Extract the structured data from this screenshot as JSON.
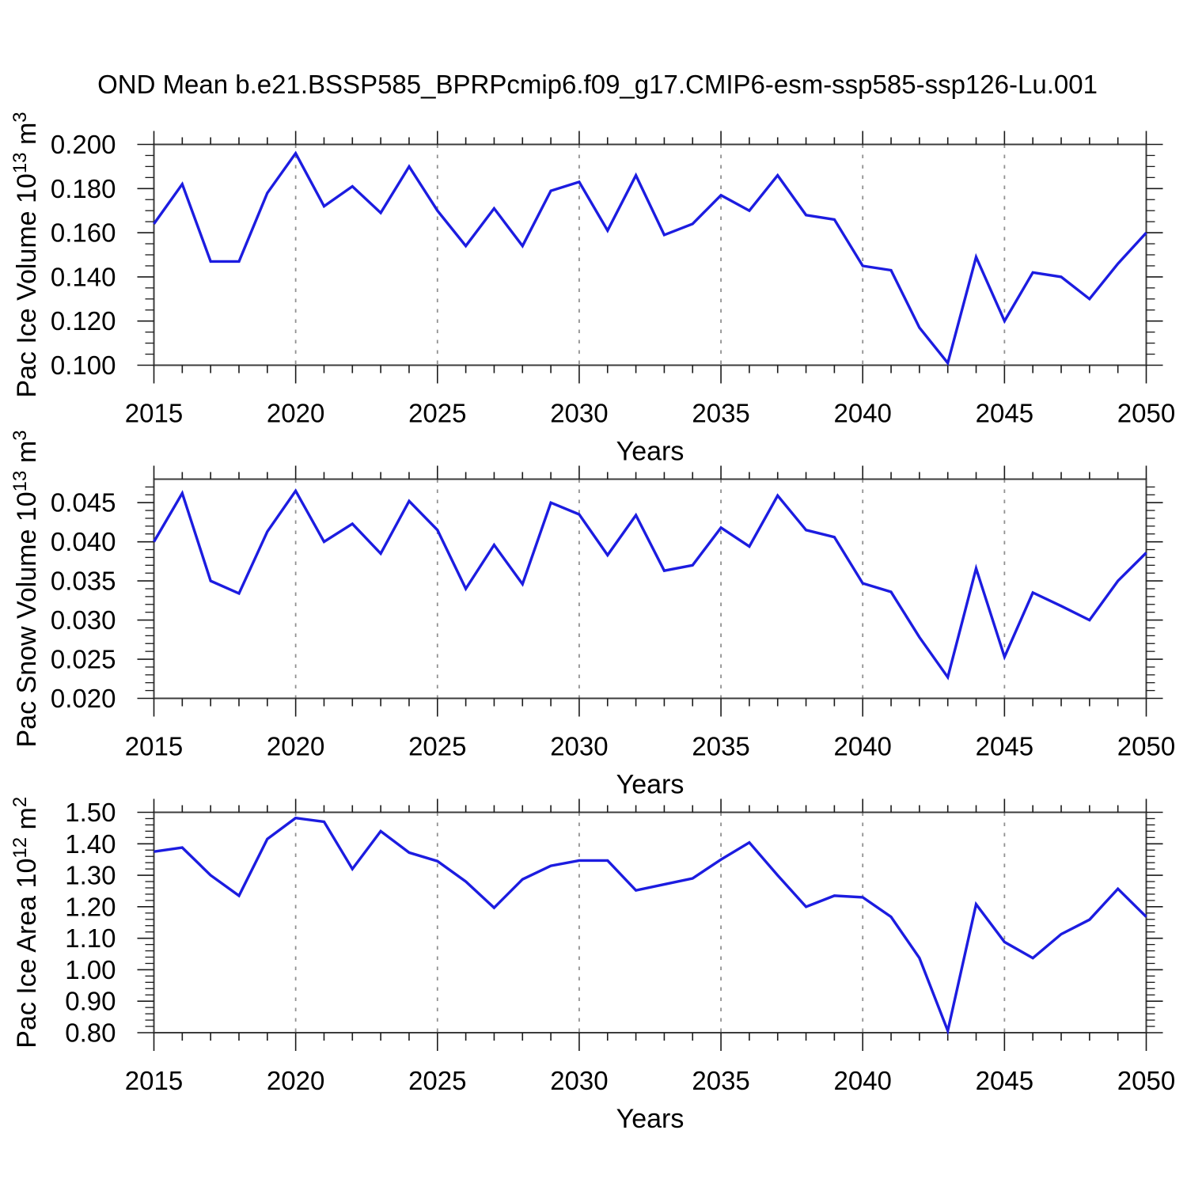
{
  "title": "OND Mean b.e21.BSSP585_BPRPcmip6.f09_g17.CMIP6-esm-ssp585-ssp126-Lu.001",
  "colors": {
    "background": "#ffffff",
    "line": "#1c1ce0",
    "grid": "#919191",
    "frame": "#3c3c3c",
    "tick": "#1a1a1a",
    "text": "#000000"
  },
  "chart_data": [
    {
      "type": "line",
      "title": "OND Mean b.e21.BSSP585_BPRPcmip6.f09_g17.CMIP6-esm-ssp585-ssp126-Lu.001",
      "xlabel": "Years",
      "ylabel": "Pac Ice Volume 10^13 m^3",
      "ylabel_segments": [
        [
          "Pac Ice Volume 10",
          false
        ],
        [
          "13",
          true
        ],
        [
          " m",
          false
        ],
        [
          "3",
          true
        ]
      ],
      "legend": "none",
      "grid": "vertical-dashed",
      "x": [
        2015,
        2016,
        2017,
        2018,
        2019,
        2020,
        2021,
        2022,
        2023,
        2024,
        2025,
        2026,
        2027,
        2028,
        2029,
        2030,
        2031,
        2032,
        2033,
        2034,
        2035,
        2036,
        2037,
        2038,
        2039,
        2040,
        2041,
        2042,
        2043,
        2044,
        2045,
        2046,
        2047,
        2048,
        2049,
        2050
      ],
      "y": [
        0.164,
        0.182,
        0.147,
        0.147,
        0.178,
        0.196,
        0.172,
        0.181,
        0.169,
        0.19,
        0.17,
        0.154,
        0.171,
        0.154,
        0.179,
        0.183,
        0.161,
        0.186,
        0.159,
        0.164,
        0.177,
        0.17,
        0.186,
        0.168,
        0.166,
        0.145,
        0.143,
        0.117,
        0.101,
        0.149,
        0.12,
        0.142,
        0.14,
        0.13,
        0.146,
        0.16
      ],
      "xlim": [
        2015,
        2050
      ],
      "ylim": [
        0.1,
        0.2
      ],
      "yticks": [
        {
          "value": 0.1,
          "label": "0.100"
        },
        {
          "value": 0.12,
          "label": "0.120"
        },
        {
          "value": 0.14,
          "label": "0.140"
        },
        {
          "value": 0.16,
          "label": "0.160"
        },
        {
          "value": 0.18,
          "label": "0.180"
        },
        {
          "value": 0.2,
          "label": "0.200"
        }
      ],
      "y_minor_step": 0.005,
      "xticks": [
        {
          "value": 2015,
          "label": "2015"
        },
        {
          "value": 2020,
          "label": "2020"
        },
        {
          "value": 2025,
          "label": "2025"
        },
        {
          "value": 2030,
          "label": "2030"
        },
        {
          "value": 2035,
          "label": "2035"
        },
        {
          "value": 2040,
          "label": "2040"
        },
        {
          "value": 2045,
          "label": "2045"
        },
        {
          "value": 2050,
          "label": "2050"
        }
      ],
      "x_minor_step": 1,
      "grid_x": [
        2020,
        2025,
        2030,
        2035,
        2040,
        2045
      ]
    },
    {
      "type": "line",
      "title": "",
      "xlabel": "Years",
      "ylabel": "Pac Snow Volume 10^13 m^3",
      "ylabel_segments": [
        [
          "Pac Snow Volume 10",
          false
        ],
        [
          "13",
          true
        ],
        [
          " m",
          false
        ],
        [
          "3",
          true
        ]
      ],
      "legend": "none",
      "grid": "vertical-dashed",
      "x": [
        2015,
        2016,
        2017,
        2018,
        2019,
        2020,
        2021,
        2022,
        2023,
        2024,
        2025,
        2026,
        2027,
        2028,
        2029,
        2030,
        2031,
        2032,
        2033,
        2034,
        2035,
        2036,
        2037,
        2038,
        2039,
        2040,
        2041,
        2042,
        2043,
        2044,
        2045,
        2046,
        2047,
        2048,
        2049,
        2050
      ],
      "y": [
        0.04,
        0.0462,
        0.035,
        0.0334,
        0.0413,
        0.0465,
        0.04,
        0.0423,
        0.0385,
        0.0452,
        0.0415,
        0.034,
        0.0396,
        0.0346,
        0.045,
        0.0435,
        0.0383,
        0.0434,
        0.0363,
        0.037,
        0.0418,
        0.0394,
        0.0459,
        0.0415,
        0.0406,
        0.0347,
        0.0336,
        0.0278,
        0.0227,
        0.0366,
        0.0253,
        0.0335,
        0.0318,
        0.03,
        0.035,
        0.0386
      ],
      "xlim": [
        2015,
        2050
      ],
      "ylim": [
        0.02,
        0.048
      ],
      "yticks": [
        {
          "value": 0.02,
          "label": "0.020"
        },
        {
          "value": 0.025,
          "label": "0.025"
        },
        {
          "value": 0.03,
          "label": "0.030"
        },
        {
          "value": 0.035,
          "label": "0.035"
        },
        {
          "value": 0.04,
          "label": "0.040"
        },
        {
          "value": 0.045,
          "label": "0.045"
        }
      ],
      "y_minor_step": 0.001,
      "xticks": [
        {
          "value": 2015,
          "label": "2015"
        },
        {
          "value": 2020,
          "label": "2020"
        },
        {
          "value": 2025,
          "label": "2025"
        },
        {
          "value": 2030,
          "label": "2030"
        },
        {
          "value": 2035,
          "label": "2035"
        },
        {
          "value": 2040,
          "label": "2040"
        },
        {
          "value": 2045,
          "label": "2045"
        },
        {
          "value": 2050,
          "label": "2050"
        }
      ],
      "x_minor_step": 1,
      "grid_x": [
        2020,
        2025,
        2030,
        2035,
        2040,
        2045
      ]
    },
    {
      "type": "line",
      "title": "",
      "xlabel": "Years",
      "ylabel": "Pac Ice Area 10^12 m^2",
      "ylabel_segments": [
        [
          "Pac Ice Area 10",
          false
        ],
        [
          "12",
          true
        ],
        [
          " m",
          false
        ],
        [
          "2",
          true
        ]
      ],
      "legend": "none",
      "grid": "vertical-dashed",
      "x": [
        2015,
        2016,
        2017,
        2018,
        2019,
        2020,
        2021,
        2022,
        2023,
        2024,
        2025,
        2026,
        2027,
        2028,
        2029,
        2030,
        2031,
        2032,
        2033,
        2034,
        2035,
        2036,
        2037,
        2038,
        2039,
        2040,
        2041,
        2042,
        2043,
        2044,
        2045,
        2046,
        2047,
        2048,
        2049,
        2050
      ],
      "y": [
        1.375,
        1.388,
        1.3,
        1.235,
        1.415,
        1.482,
        1.47,
        1.32,
        1.44,
        1.372,
        1.345,
        1.28,
        1.197,
        1.287,
        1.33,
        1.347,
        1.347,
        1.252,
        1.271,
        1.29,
        1.35,
        1.404,
        1.3,
        1.2,
        1.235,
        1.23,
        1.168,
        1.037,
        0.806,
        1.208,
        1.088,
        1.037,
        1.113,
        1.159,
        1.257,
        1.168
      ],
      "xlim": [
        2015,
        2050
      ],
      "ylim": [
        0.8,
        1.5
      ],
      "yticks": [
        {
          "value": 0.8,
          "label": "0.80"
        },
        {
          "value": 0.9,
          "label": "0.90"
        },
        {
          "value": 1.0,
          "label": "1.00"
        },
        {
          "value": 1.1,
          "label": "1.10"
        },
        {
          "value": 1.2,
          "label": "1.20"
        },
        {
          "value": 1.3,
          "label": "1.30"
        },
        {
          "value": 1.4,
          "label": "1.40"
        },
        {
          "value": 1.5,
          "label": "1.50"
        }
      ],
      "y_minor_step": 0.02,
      "xticks": [
        {
          "value": 2015,
          "label": "2015"
        },
        {
          "value": 2020,
          "label": "2020"
        },
        {
          "value": 2025,
          "label": "2025"
        },
        {
          "value": 2030,
          "label": "2030"
        },
        {
          "value": 2035,
          "label": "2035"
        },
        {
          "value": 2040,
          "label": "2040"
        },
        {
          "value": 2045,
          "label": "2045"
        },
        {
          "value": 2050,
          "label": "2050"
        }
      ],
      "x_minor_step": 1,
      "grid_x": [
        2020,
        2025,
        2030,
        2035,
        2040,
        2045
      ]
    }
  ]
}
